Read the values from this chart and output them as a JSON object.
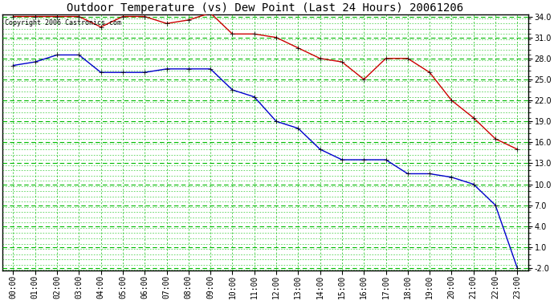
{
  "title": "Outdoor Temperature (vs) Dew Point (Last 24 Hours) 20061206",
  "copyright": "Copyright 2006 Castronics.com",
  "hours": [
    "00:00",
    "01:00",
    "02:00",
    "03:00",
    "04:00",
    "05:00",
    "06:00",
    "07:00",
    "08:00",
    "09:00",
    "10:00",
    "11:00",
    "12:00",
    "13:00",
    "14:00",
    "15:00",
    "16:00",
    "17:00",
    "18:00",
    "19:00",
    "20:00",
    "21:00",
    "22:00",
    "23:00"
  ],
  "temp": [
    34.0,
    34.0,
    34.0,
    34.0,
    32.5,
    34.0,
    34.0,
    33.0,
    33.5,
    34.5,
    31.5,
    31.5,
    31.0,
    29.5,
    28.0,
    27.5,
    25.0,
    28.0,
    28.0,
    26.0,
    22.0,
    19.5,
    16.5,
    15.0
  ],
  "dew": [
    27.0,
    27.5,
    28.5,
    28.5,
    26.0,
    26.0,
    26.0,
    26.5,
    26.5,
    26.5,
    23.5,
    22.5,
    19.0,
    18.0,
    15.0,
    13.5,
    13.5,
    13.5,
    11.5,
    11.5,
    11.0,
    10.0,
    7.0,
    -2.0
  ],
  "temp_color": "#cc0000",
  "dew_color": "#0000cc",
  "bg_color": "#ffffff",
  "grid_color_h": "#00bb00",
  "grid_color_v": "#00bb00",
  "ylim_min": -2.0,
  "ylim_max": 34.0,
  "yticks": [
    -2.0,
    1.0,
    4.0,
    7.0,
    10.0,
    13.0,
    16.0,
    19.0,
    22.0,
    25.0,
    28.0,
    31.0,
    34.0
  ],
  "title_fontsize": 10,
  "axis_fontsize": 7,
  "copyright_fontsize": 6,
  "marker": "+",
  "markersize": 5,
  "linewidth": 1.0
}
